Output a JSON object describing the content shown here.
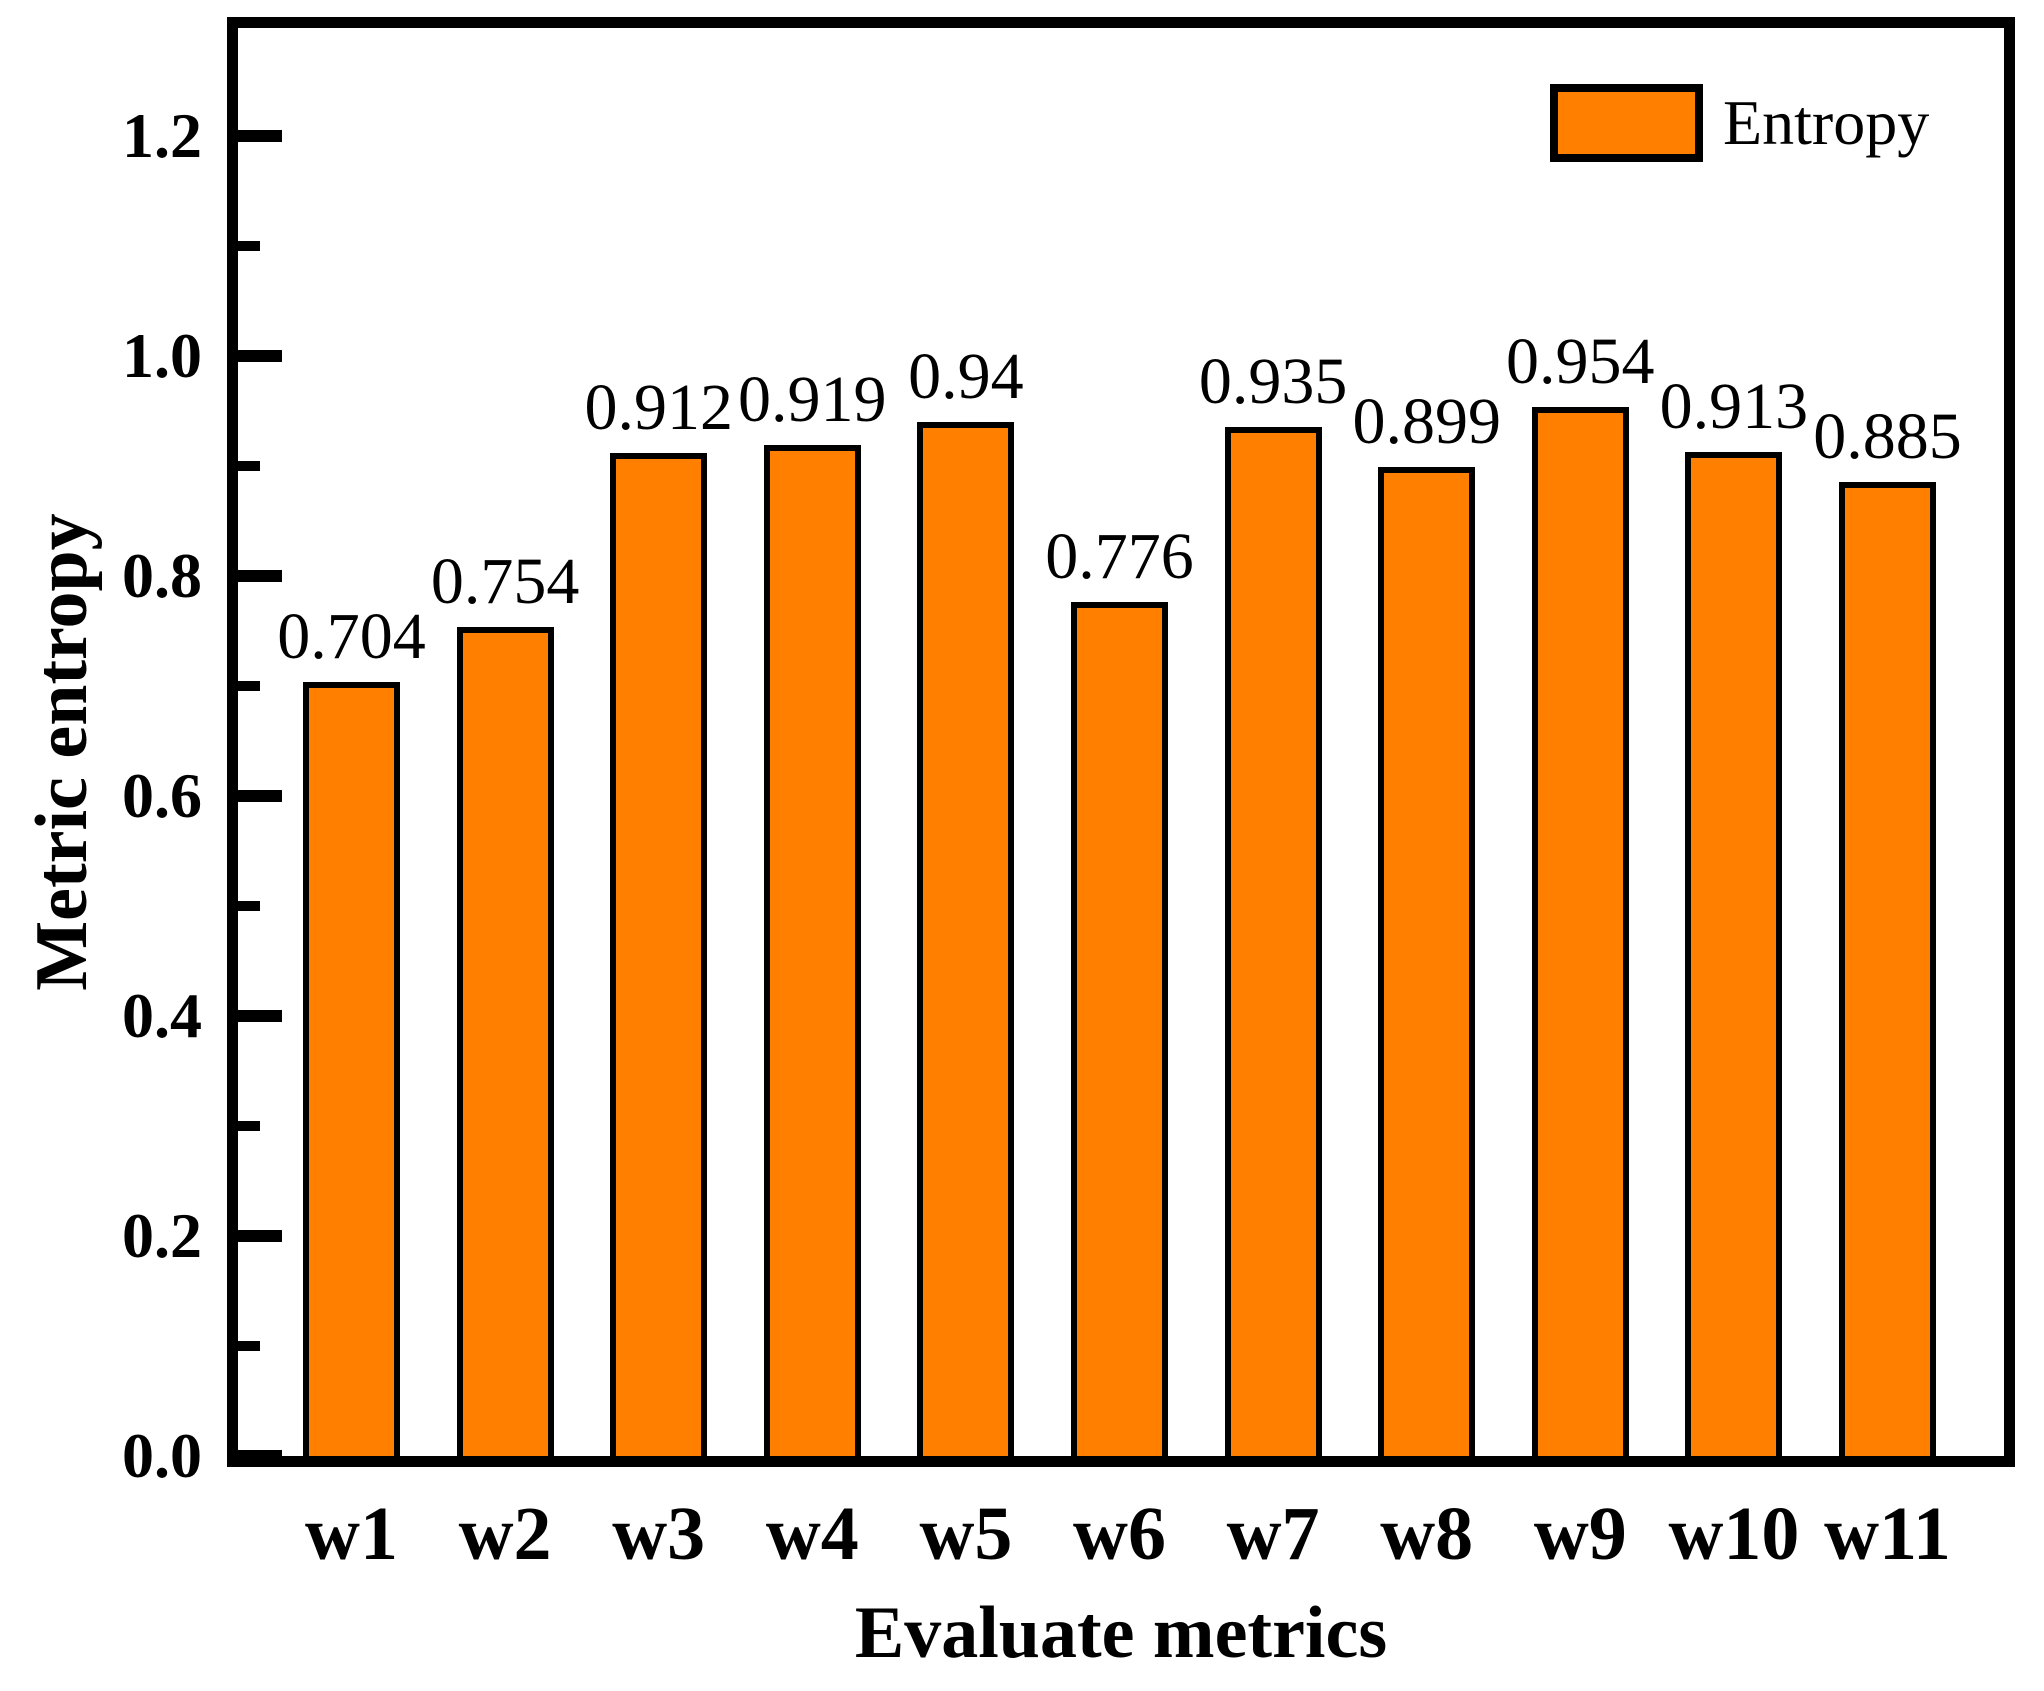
{
  "chart_data": {
    "type": "bar",
    "categories": [
      "w1",
      "w2",
      "w3",
      "w4",
      "w5",
      "w6",
      "w7",
      "w8",
      "w9",
      "w10",
      "w11"
    ],
    "series": [
      {
        "name": "Entropy",
        "values": [
          0.704,
          0.754,
          0.912,
          0.919,
          0.94,
          0.776,
          0.935,
          0.899,
          0.954,
          0.913,
          0.885
        ]
      }
    ],
    "value_labels": [
      "0.704",
      "0.754",
      "0.912",
      "0.919",
      "0.94",
      "0.776",
      "0.935",
      "0.899",
      "0.954",
      "0.913",
      "0.885"
    ],
    "title": "",
    "xlabel": "Evaluate metrics",
    "ylabel": "Metric entropy",
    "ylim": [
      0,
      1.3
    ],
    "ytick_labels": [
      "0.0",
      "0.2",
      "0.4",
      "0.6",
      "0.8",
      "1.0",
      "1.2"
    ],
    "yticks_major": [
      0.0,
      0.2,
      0.4,
      0.6,
      0.8,
      1.0,
      1.2
    ],
    "yticks_minor": [
      0.1,
      0.3,
      0.5,
      0.7,
      0.9,
      1.1
    ],
    "grid": false,
    "legend_position": "top-right",
    "colors": {
      "bar_fill": "#FF8000",
      "bar_border": "#000000",
      "axis": "#000000",
      "text": "#000000",
      "background": "#FFFFFF"
    }
  },
  "legend": {
    "label": "Entropy"
  }
}
